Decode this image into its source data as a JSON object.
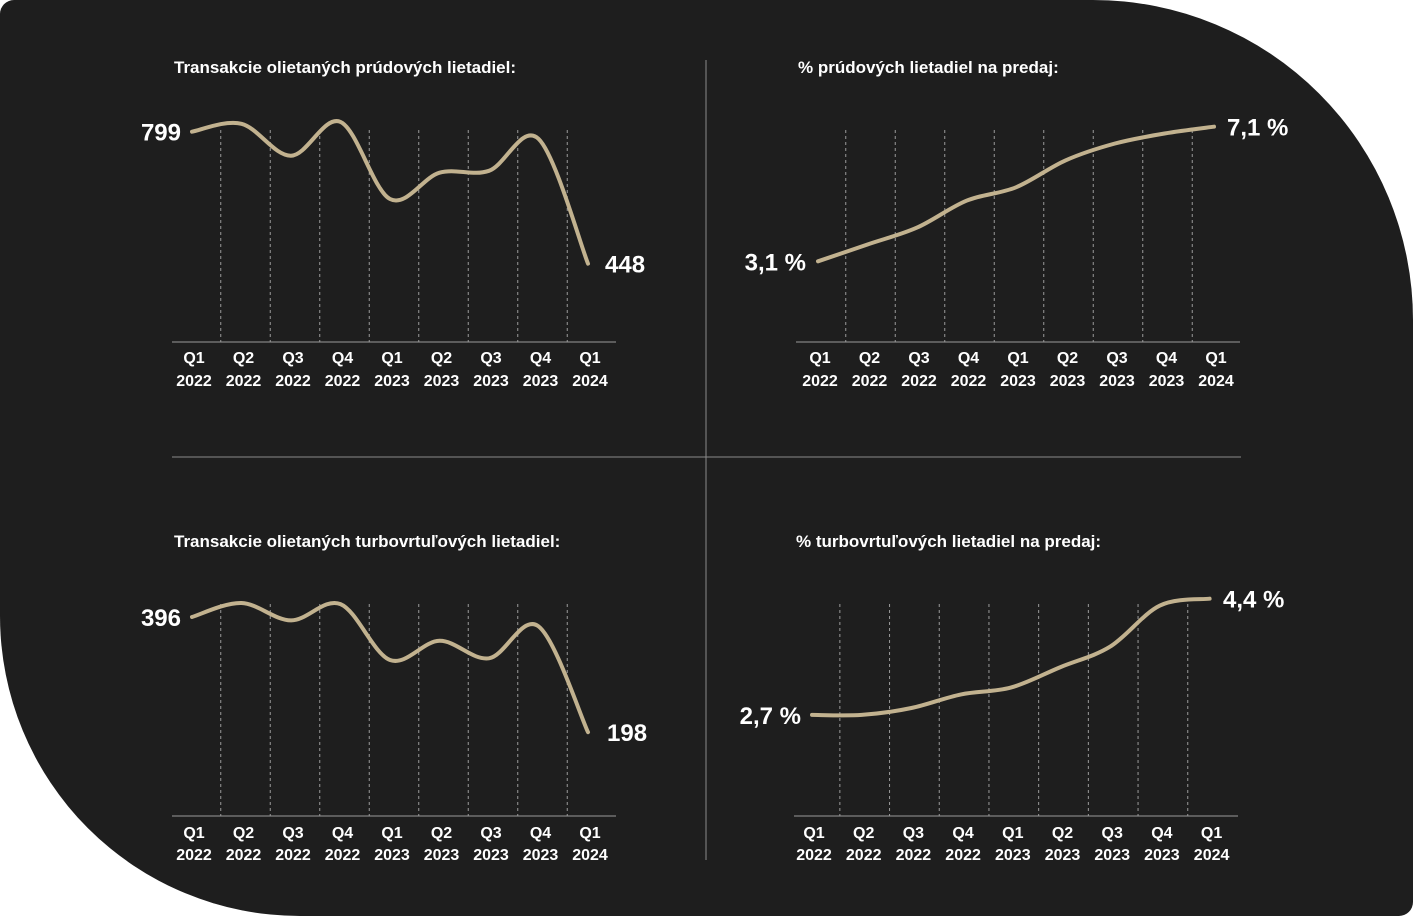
{
  "colors": {
    "background": "#1e1e1e",
    "line": "#c2b28f",
    "text": "#ffffff",
    "grid": "#9a9a9a",
    "divider": "#8a8a8a"
  },
  "chart_data": [
    {
      "type": "line",
      "title": "Transakcie olietaných prúdových lietadiel:",
      "categories": [
        "Q1 2022",
        "Q2 2022",
        "Q3 2022",
        "Q4 2022",
        "Q1 2023",
        "Q2 2023",
        "Q3 2023",
        "Q4 2023",
        "Q1 2024"
      ],
      "category_lines": [
        [
          "Q1",
          "2022"
        ],
        [
          "Q2",
          "2022"
        ],
        [
          "Q3",
          "2022"
        ],
        [
          "Q4",
          "2022"
        ],
        [
          "Q1",
          "2023"
        ],
        [
          "Q2",
          "2023"
        ],
        [
          "Q3",
          "2023"
        ],
        [
          "Q4",
          "2023"
        ],
        [
          "Q1",
          "2024"
        ]
      ],
      "values": [
        799,
        820,
        735,
        825,
        620,
        690,
        695,
        780,
        448
      ],
      "labels": {
        "first": "799",
        "last": "448"
      },
      "ylim": [
        240,
        830
      ],
      "grid": "vertical-dashed"
    },
    {
      "type": "line",
      "title": "% prúdových lietadiel na predaj:",
      "categories": [
        "Q1 2022",
        "Q2 2022",
        "Q3 2022",
        "Q4 2022",
        "Q1 2023",
        "Q2 2023",
        "Q3 2023",
        "Q4 2023",
        "Q1 2024"
      ],
      "category_lines": [
        [
          "Q1",
          "2022"
        ],
        [
          "Q2",
          "2022"
        ],
        [
          "Q3",
          "2022"
        ],
        [
          "Q4",
          "2022"
        ],
        [
          "Q1",
          "2023"
        ],
        [
          "Q2",
          "2023"
        ],
        [
          "Q3",
          "2023"
        ],
        [
          "Q4",
          "2023"
        ],
        [
          "Q1",
          "2024"
        ]
      ],
      "values": [
        3.1,
        3.6,
        4.1,
        4.9,
        5.3,
        6.1,
        6.6,
        6.9,
        7.1
      ],
      "labels": {
        "first": "3,1 %",
        "last": "7,1 %"
      },
      "ylim": [
        0.7,
        7.3
      ],
      "grid": "vertical-dashed"
    },
    {
      "type": "line",
      "title": "Transakcie olietaných turbovrtuľových lietadiel:",
      "categories": [
        "Q1 2022",
        "Q2 2022",
        "Q3 2022",
        "Q4 2022",
        "Q1 2023",
        "Q2 2023",
        "Q3 2023",
        "Q4 2023",
        "Q1 2024"
      ],
      "category_lines": [
        [
          "Q1",
          "2022"
        ],
        [
          "Q2",
          "2022"
        ],
        [
          "Q3",
          "2022"
        ],
        [
          "Q4",
          "2022"
        ],
        [
          "Q1",
          "2023"
        ],
        [
          "Q2",
          "2023"
        ],
        [
          "Q3",
          "2023"
        ],
        [
          "Q4",
          "2023"
        ],
        [
          "Q1",
          "2024"
        ]
      ],
      "values": [
        396,
        420,
        390,
        418,
        322,
        355,
        325,
        380,
        198
      ],
      "labels": {
        "first": "396",
        "last": "198"
      },
      "ylim": [
        54,
        432
      ],
      "grid": "vertical-dashed"
    },
    {
      "type": "line",
      "title": "% turbovrtuľových lietadiel na predaj:",
      "categories": [
        "Q1 2022",
        "Q2 2022",
        "Q3 2022",
        "Q4 2022",
        "Q1 2023",
        "Q2 2023",
        "Q3 2023",
        "Q4 2023",
        "Q1 2024"
      ],
      "category_lines": [
        [
          "Q1",
          "2022"
        ],
        [
          "Q2",
          "2022"
        ],
        [
          "Q3",
          "2022"
        ],
        [
          "Q4",
          "2022"
        ],
        [
          "Q1",
          "2023"
        ],
        [
          "Q2",
          "2023"
        ],
        [
          "Q3",
          "2023"
        ],
        [
          "Q4",
          "2023"
        ],
        [
          "Q1",
          "2024"
        ]
      ],
      "values": [
        2.7,
        2.7,
        2.8,
        3.0,
        3.1,
        3.4,
        3.7,
        4.3,
        4.4
      ],
      "labels": {
        "first": "2,7 %",
        "last": "4,4 %"
      },
      "ylim": [
        1.22,
        4.44
      ],
      "grid": "vertical-dashed"
    }
  ]
}
